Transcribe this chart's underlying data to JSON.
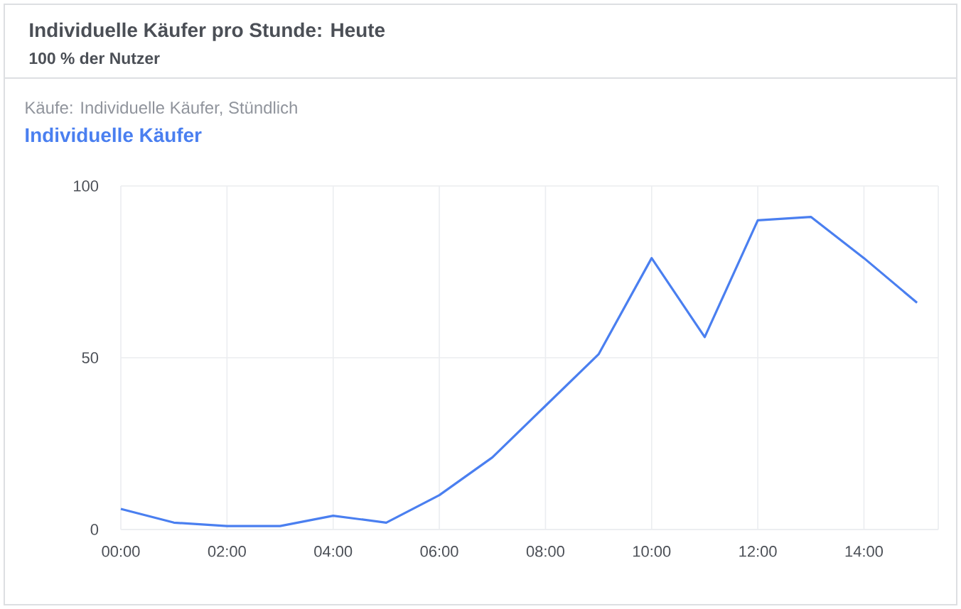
{
  "chart_data": {
    "type": "line",
    "title": "Individuelle Käufer pro Stunde: Heute",
    "subtitle": "100 % der Nutzer",
    "annotations": [
      "Käufe: Individuelle Käufer, Stündlich"
    ],
    "x": [
      0,
      1,
      2,
      3,
      4,
      5,
      6,
      7,
      8,
      9,
      10,
      11,
      12,
      13,
      14,
      15
    ],
    "series": [
      {
        "name": "Individuelle Käufer",
        "color": "#4a7ff0",
        "values": [
          6,
          2,
          1,
          1,
          4,
          2,
          10,
          21,
          36,
          51,
          79,
          56,
          90,
          91,
          79,
          66
        ]
      }
    ],
    "xlim": [
      0,
      15.4
    ],
    "xticks": [
      {
        "value": 0,
        "label": "00:00"
      },
      {
        "value": 2,
        "label": "02:00"
      },
      {
        "value": 4,
        "label": "04:00"
      },
      {
        "value": 6,
        "label": "06:00"
      },
      {
        "value": 8,
        "label": "08:00"
      },
      {
        "value": 10,
        "label": "10:00"
      },
      {
        "value": 12,
        "label": "12:00"
      },
      {
        "value": 14,
        "label": "14:00"
      }
    ],
    "ylim": [
      0,
      100
    ],
    "yticks": [
      0,
      50,
      100
    ],
    "grid": true,
    "legend": "top left",
    "marker": "none",
    "line_style": "solid"
  }
}
